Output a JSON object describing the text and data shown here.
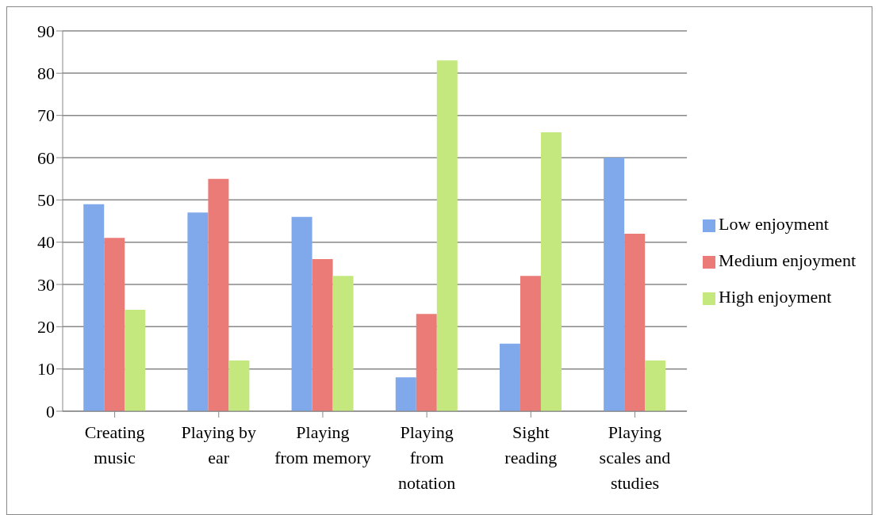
{
  "chart_data": {
    "type": "bar",
    "categories": [
      "Creating music",
      "Playing by ear",
      "Playing from memory",
      "Playing from notation",
      "Sight reading",
      "Playing scales and studies"
    ],
    "series": [
      {
        "name": "Low enjoyment",
        "color": "#7fa9ea",
        "values": [
          49,
          47,
          46,
          8,
          16,
          60
        ]
      },
      {
        "name": "Medium enjoyment",
        "color": "#ea7b76",
        "values": [
          41,
          55,
          36,
          23,
          32,
          42
        ]
      },
      {
        "name": "High enjoyment",
        "color": "#c4e87e",
        "values": [
          24,
          12,
          32,
          83,
          66,
          12
        ]
      }
    ],
    "ylim": [
      0,
      90
    ],
    "yticks": [
      0,
      10,
      20,
      30,
      40,
      50,
      60,
      70,
      80,
      90
    ],
    "grid": "y",
    "legend": "right"
  }
}
